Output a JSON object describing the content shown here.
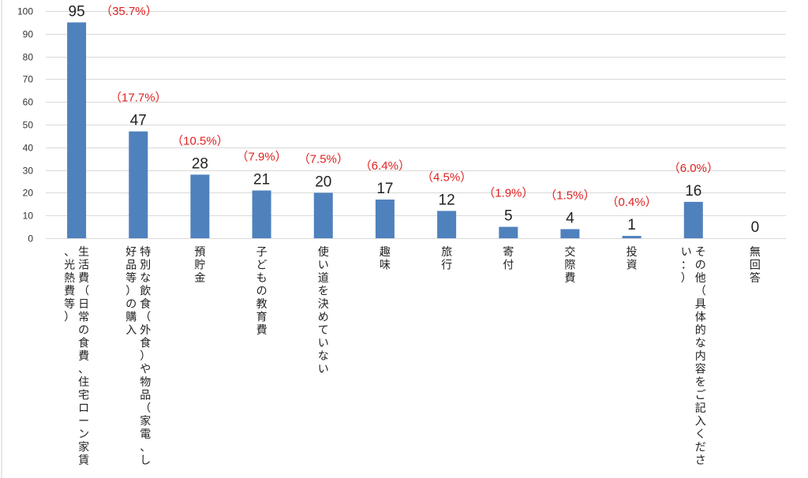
{
  "chart_data": {
    "type": "bar",
    "categories": [
      "生活費（日常の食費、住宅ローン家賃、光熱費等）",
      "特別な飲食（外食）や物品（家電、し好品等）の購入",
      "預貯金",
      "子どもの教育費",
      "使い道を決めていない",
      "趣味",
      "旅行",
      "寄付",
      "交際費",
      "投資",
      "その他（具体的な内容をご記入ください：）",
      "無回答"
    ],
    "values": [
      95,
      47,
      28,
      21,
      20,
      17,
      12,
      5,
      4,
      1,
      16,
      0
    ],
    "percent_labels": [
      "（35.7%）",
      "（17.7%）",
      "（10.5%）",
      "（7.9%）",
      "（7.5%）",
      "（6.4%）",
      "（4.5%）",
      "（1.9%）",
      "（1.5%）",
      "（0.4%）",
      "（6.0%）",
      ""
    ],
    "ylim": [
      0,
      100
    ],
    "yticks": [
      0,
      10,
      20,
      30,
      40,
      50,
      60,
      70,
      80,
      90,
      100
    ],
    "grid": true,
    "colors": {
      "bar": "#4f81bd",
      "grid": "#d9d9d9",
      "percent": "#e02020"
    }
  }
}
